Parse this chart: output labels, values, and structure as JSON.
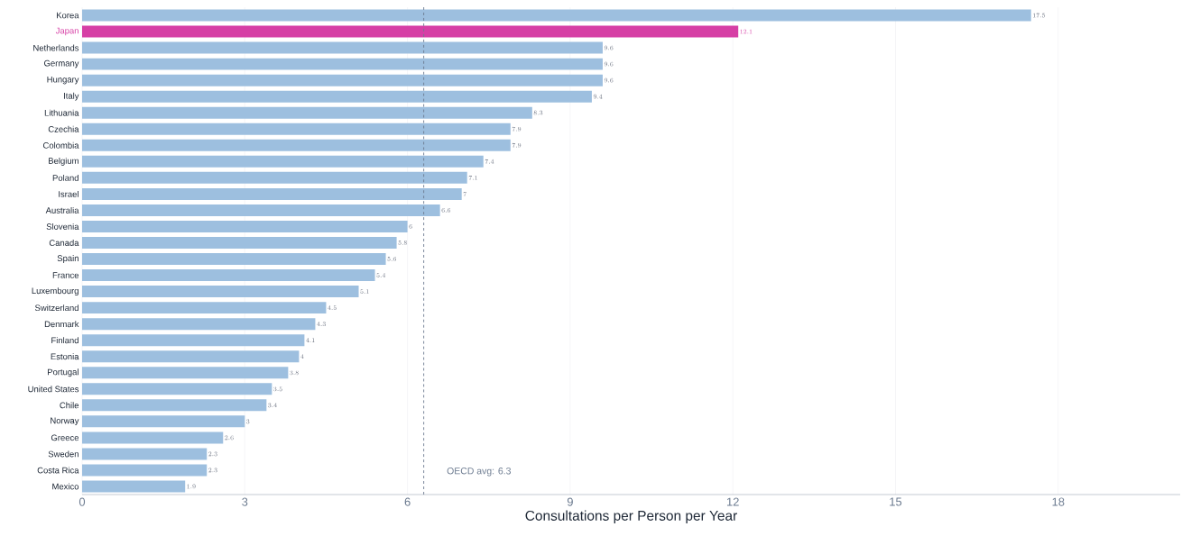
{
  "chart_data": {
    "type": "bar",
    "orientation": "horizontal",
    "xlabel": "Consultations per Person per Year",
    "categories": [
      "Korea",
      "Japan",
      "Netherlands",
      "Germany",
      "Hungary",
      "Italy",
      "Lithuania",
      "Czechia",
      "Colombia",
      "Belgium",
      "Poland",
      "Israel",
      "Australia",
      "Slovenia",
      "Canada",
      "Spain",
      "France",
      "Luxembourg",
      "Switzerland",
      "Denmark",
      "Finland",
      "Estonia",
      "Portugal",
      "United States",
      "Chile",
      "Norway",
      "Greece",
      "Sweden",
      "Costa Rica",
      "Mexico"
    ],
    "values": [
      17.5,
      12.1,
      9.6,
      9.6,
      9.6,
      9.4,
      8.3,
      7.9,
      7.9,
      7.4,
      7.1,
      7,
      6.6,
      6,
      5.8,
      5.6,
      5.4,
      5.1,
      4.5,
      4.3,
      4.1,
      4,
      3.8,
      3.5,
      3.4,
      3,
      2.6,
      2.3,
      2.3,
      1.9
    ],
    "colors": [
      "#9dbfdf",
      "#d63fa5",
      "#9dbfdf",
      "#9dbfdf",
      "#9dbfdf",
      "#9dbfdf",
      "#9dbfdf",
      "#9dbfdf",
      "#9dbfdf",
      "#9dbfdf",
      "#9dbfdf",
      "#9dbfdf",
      "#9dbfdf",
      "#9dbfdf",
      "#9dbfdf",
      "#9dbfdf",
      "#9dbfdf",
      "#9dbfdf",
      "#9dbfdf",
      "#9dbfdf",
      "#9dbfdf",
      "#9dbfdf",
      "#9dbfdf",
      "#9dbfdf",
      "#9dbfdf",
      "#9dbfdf",
      "#9dbfdf",
      "#9dbfdf",
      "#9dbfdf",
      "#9dbfdf"
    ],
    "xlim": [
      0,
      20.25
    ],
    "xticks": [
      0,
      3,
      6,
      9,
      12,
      15,
      18
    ],
    "grid": "x",
    "data_labels": true,
    "ref_lines": [
      {
        "axis": "x",
        "value": 6.3,
        "label": "OECD avg: 6.3",
        "color": "#6b7a8f",
        "line_style": "dashed"
      }
    ]
  }
}
